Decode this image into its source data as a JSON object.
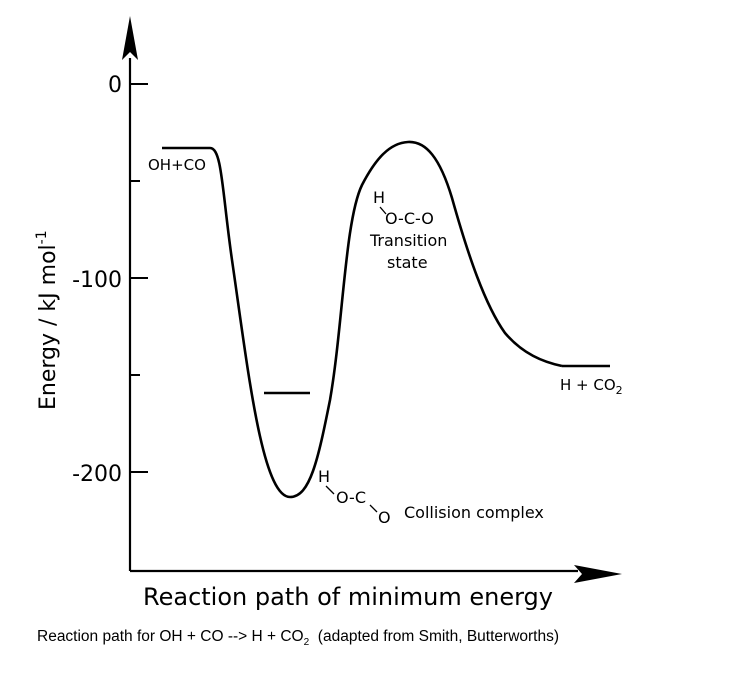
{
  "diagram": {
    "y_axis": {
      "label": "Energy / kJ mol",
      "label_exp": "-1",
      "ticks": [
        {
          "value": 0,
          "label": "0"
        },
        {
          "value": -100,
          "label": "-100"
        },
        {
          "value": -200,
          "label": "-200"
        }
      ],
      "minor_ticks": [
        -50,
        -150,
        -250
      ]
    },
    "x_axis": {
      "label": "Reaction path of minimum energy"
    },
    "species": {
      "reactants": "OH+CO",
      "products": "H + CO",
      "products_sub": "2",
      "transition_state": {
        "formula_top": "H",
        "formula": "O-C-O",
        "line1": "Transition",
        "line2": "state"
      },
      "collision_complex": {
        "h": "H",
        "oc": "O-C",
        "o": "O",
        "label": "Collision complex"
      }
    }
  },
  "caption": {
    "text_before": "Reaction path for OH + CO --> H + CO",
    "sub": "2",
    "text_after": "  (adapted from Smith, Butterworths)"
  }
}
